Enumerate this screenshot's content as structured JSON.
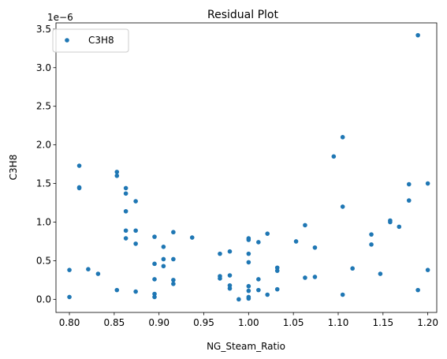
{
  "chart_data": {
    "type": "scatter",
    "title": "Residual Plot",
    "xlabel": "NG_Steam_Ratio",
    "ylabel": "C3H8",
    "y_scale_label": "1e−6",
    "xlim": [
      0.785,
      1.21
    ],
    "ylim": [
      -0.17,
      3.58
    ],
    "xticks": [
      0.8,
      0.85,
      0.9,
      0.95,
      1.0,
      1.05,
      1.1,
      1.15,
      1.2
    ],
    "xtick_labels": [
      "0.80",
      "0.85",
      "0.90",
      "0.95",
      "1.00",
      "1.05",
      "1.10",
      "1.15",
      "1.20"
    ],
    "yticks": [
      0.0,
      0.5,
      1.0,
      1.5,
      2.0,
      2.5,
      3.0,
      3.5
    ],
    "ytick_labels": [
      "0.0",
      "0.5",
      "1.0",
      "1.5",
      "2.0",
      "2.5",
      "3.0",
      "3.5"
    ],
    "grid": false,
    "legend_position": "top-left",
    "series": [
      {
        "name": "C3H8",
        "color": "#1f77b4",
        "points": [
          [
            0.8,
            0.03
          ],
          [
            0.8,
            0.38
          ],
          [
            0.811,
            1.73
          ],
          [
            0.811,
            1.45
          ],
          [
            0.811,
            1.44
          ],
          [
            0.821,
            0.39
          ],
          [
            0.832,
            0.33
          ],
          [
            0.853,
            1.65
          ],
          [
            0.853,
            1.6
          ],
          [
            0.853,
            0.12
          ],
          [
            0.863,
            1.44
          ],
          [
            0.863,
            1.37
          ],
          [
            0.863,
            1.14
          ],
          [
            0.863,
            0.89
          ],
          [
            0.863,
            0.79
          ],
          [
            0.874,
            1.27
          ],
          [
            0.874,
            0.89
          ],
          [
            0.874,
            0.72
          ],
          [
            0.874,
            0.1
          ],
          [
            0.895,
            0.81
          ],
          [
            0.895,
            0.46
          ],
          [
            0.895,
            0.26
          ],
          [
            0.895,
            0.07
          ],
          [
            0.895,
            0.03
          ],
          [
            0.905,
            0.68
          ],
          [
            0.905,
            0.52
          ],
          [
            0.905,
            0.43
          ],
          [
            0.916,
            0.87
          ],
          [
            0.916,
            0.52
          ],
          [
            0.916,
            0.25
          ],
          [
            0.916,
            0.2
          ],
          [
            0.937,
            0.8
          ],
          [
            0.968,
            0.59
          ],
          [
            0.968,
            0.3
          ],
          [
            0.968,
            0.27
          ],
          [
            0.979,
            0.62
          ],
          [
            0.979,
            0.31
          ],
          [
            0.979,
            0.18
          ],
          [
            0.979,
            0.14
          ],
          [
            0.989,
            0.0
          ],
          [
            1.0,
            0.79
          ],
          [
            1.0,
            0.77
          ],
          [
            1.0,
            0.59
          ],
          [
            1.0,
            0.48
          ],
          [
            1.0,
            0.17
          ],
          [
            1.0,
            0.11
          ],
          [
            1.0,
            0.03
          ],
          [
            1.0,
            0.01
          ],
          [
            1.011,
            0.74
          ],
          [
            1.011,
            0.26
          ],
          [
            1.011,
            0.12
          ],
          [
            1.021,
            0.85
          ],
          [
            1.021,
            0.06
          ],
          [
            1.032,
            0.41
          ],
          [
            1.032,
            0.37
          ],
          [
            1.032,
            0.13
          ],
          [
            1.053,
            0.75
          ],
          [
            1.063,
            0.96
          ],
          [
            1.063,
            0.28
          ],
          [
            1.074,
            0.67
          ],
          [
            1.074,
            0.29
          ],
          [
            1.095,
            1.85
          ],
          [
            1.105,
            2.1
          ],
          [
            1.105,
            1.2
          ],
          [
            1.105,
            0.06
          ],
          [
            1.116,
            0.4
          ],
          [
            1.137,
            0.84
          ],
          [
            1.137,
            0.71
          ],
          [
            1.147,
            0.33
          ],
          [
            1.158,
            1.02
          ],
          [
            1.158,
            1.0
          ],
          [
            1.168,
            0.94
          ],
          [
            1.179,
            1.49
          ],
          [
            1.179,
            1.28
          ],
          [
            1.189,
            3.42
          ],
          [
            1.189,
            0.12
          ],
          [
            1.2,
            1.5
          ],
          [
            1.2,
            0.38
          ]
        ]
      }
    ]
  }
}
